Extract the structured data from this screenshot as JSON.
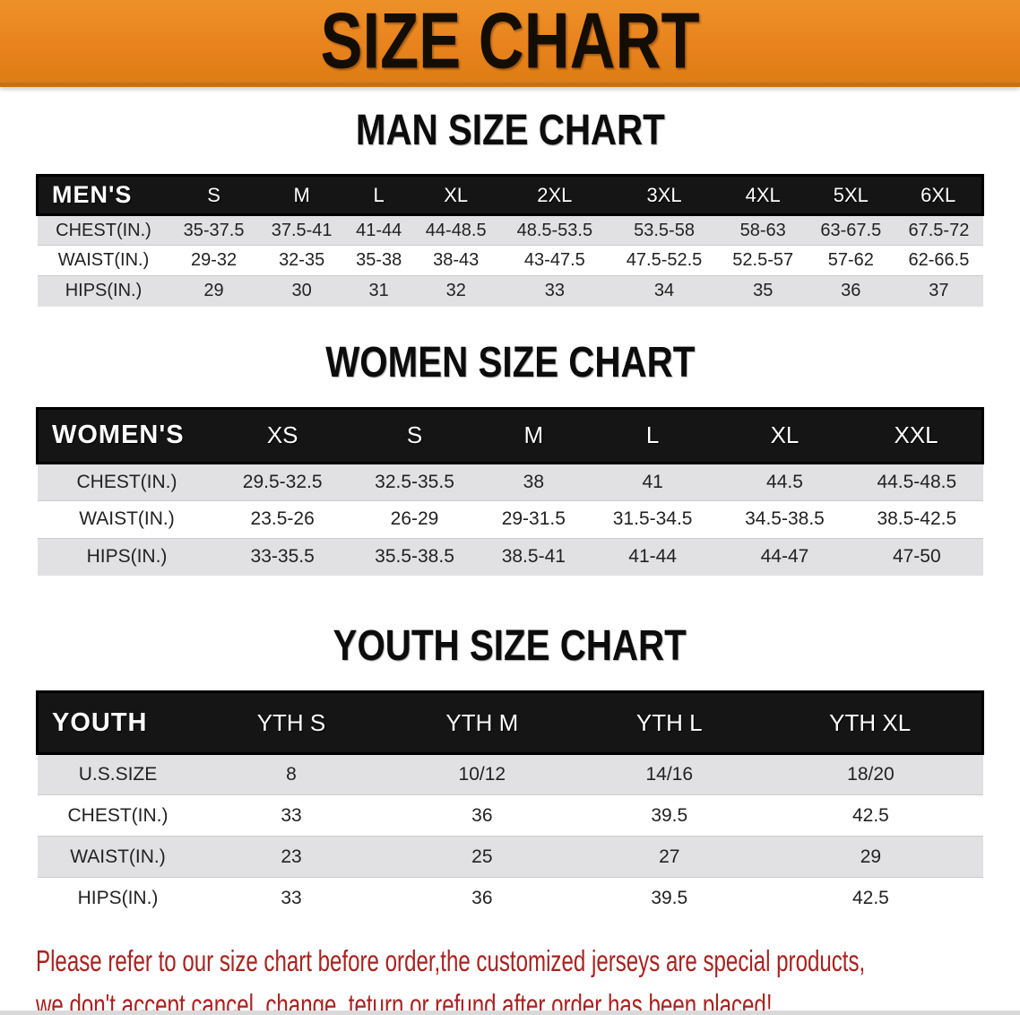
{
  "banner": {
    "title": "SIZE CHART"
  },
  "colors": {
    "banner_bg": "#E8831D",
    "header_bg": "#151515",
    "row_gray": "#E1E1E3",
    "footer_text": "#A92220"
  },
  "sections": [
    {
      "key": "mens",
      "heading": "MAN SIZE CHART",
      "header_label": "MEN'S",
      "columns": [
        "S",
        "M",
        "L",
        "XL",
        "2XL",
        "3XL",
        "4XL",
        "5XL",
        "6XL"
      ],
      "rows": [
        {
          "label": "CHEST(IN.)",
          "values": [
            "35-37.5",
            "37.5-41",
            "41-44",
            "44-48.5",
            "48.5-53.5",
            "53.5-58",
            "58-63",
            "63-67.5",
            "67.5-72"
          ]
        },
        {
          "label": "WAIST(IN.)",
          "values": [
            "29-32",
            "32-35",
            "35-38",
            "38-43",
            "43-47.5",
            "47.5-52.5",
            "52.5-57",
            "57-62",
            "62-66.5"
          ]
        },
        {
          "label": "HIPS(IN.)",
          "values": [
            "29",
            "30",
            "31",
            "32",
            "33",
            "34",
            "35",
            "36",
            "37"
          ]
        }
      ]
    },
    {
      "key": "womens",
      "heading": "WOMEN SIZE CHART",
      "header_label": "WOMEN'S",
      "columns": [
        "XS",
        "S",
        "M",
        "L",
        "XL",
        "XXL"
      ],
      "rows": [
        {
          "label": "CHEST(IN.)",
          "values": [
            "29.5-32.5",
            "32.5-35.5",
            "38",
            "41",
            "44.5",
            "44.5-48.5"
          ]
        },
        {
          "label": "WAIST(IN.)",
          "values": [
            "23.5-26",
            "26-29",
            "29-31.5",
            "31.5-34.5",
            "34.5-38.5",
            "38.5-42.5"
          ]
        },
        {
          "label": "HIPS(IN.)",
          "values": [
            "33-35.5",
            "35.5-38.5",
            "38.5-41",
            "41-44",
            "44-47",
            "47-50"
          ]
        }
      ]
    },
    {
      "key": "youth",
      "heading": "YOUTH SIZE CHART",
      "header_label": "YOUTH",
      "columns": [
        "YTH S",
        "YTH M",
        "YTH L",
        "YTH XL"
      ],
      "rows": [
        {
          "label": "U.S.SIZE",
          "values": [
            "8",
            "10/12",
            "14/16",
            "18/20"
          ]
        },
        {
          "label": "CHEST(IN.)",
          "values": [
            "33",
            "36",
            "39.5",
            "42.5"
          ]
        },
        {
          "label": "WAIST(IN.)",
          "values": [
            "23",
            "25",
            "27",
            "29"
          ]
        },
        {
          "label": "HIPS(IN.)",
          "values": [
            "33",
            "36",
            "39.5",
            "42.5"
          ]
        }
      ]
    }
  ],
  "footer": {
    "line1": "Please refer to our size chart before order,the customized jerseys are special products,",
    "line2": "we don't accept cancel, change, teturn or refund after order has been placed!"
  }
}
